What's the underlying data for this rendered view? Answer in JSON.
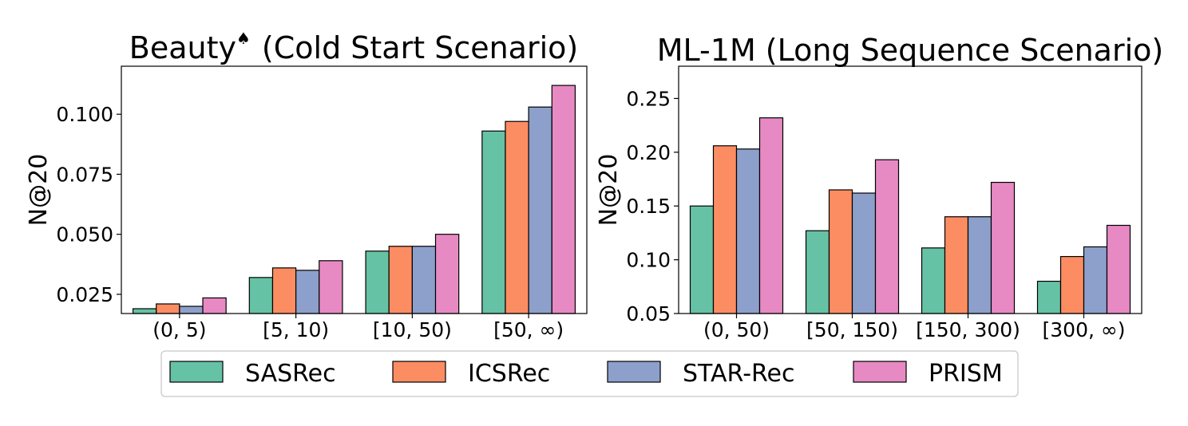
{
  "colors": {
    "SASRec": "#66c2a5",
    "ICSRec": "#fc8d62",
    "STAR-Rec": "#8da0cb",
    "PRISM": "#e78ac3"
  },
  "legend": {
    "placement": "bottom-center",
    "entries": [
      "SASRec",
      "ICSRec",
      "STAR-Rec",
      "PRISM"
    ]
  },
  "chart_data": [
    {
      "type": "bar",
      "title": "Beauty",
      "title_mark": "♠",
      "title_suffix": "(Cold Start Scenario)",
      "xlabel": "",
      "ylabel": "N@20",
      "ylim": [
        0.017,
        0.12
      ],
      "yticks": [
        "0.025",
        "0.050",
        "0.075",
        "0.100"
      ],
      "categories": [
        "(0, 5)",
        "[5, 10)",
        "[10, 50)",
        "[50, ∞)"
      ],
      "series": [
        {
          "name": "SASRec",
          "values": [
            0.019,
            0.032,
            0.043,
            0.093
          ]
        },
        {
          "name": "ICSRec",
          "values": [
            0.021,
            0.036,
            0.045,
            0.097
          ]
        },
        {
          "name": "STAR-Rec",
          "values": [
            0.02,
            0.035,
            0.045,
            0.103
          ]
        },
        {
          "name": "PRISM",
          "values": [
            0.0235,
            0.039,
            0.05,
            0.112
          ]
        }
      ],
      "grid": false
    },
    {
      "type": "bar",
      "title": "ML-1M (Long Sequence Scenario)",
      "title_mark": "",
      "title_suffix": "",
      "xlabel": "",
      "ylabel": "N@20",
      "ylim": [
        0.05,
        0.28
      ],
      "yticks": [
        "0.05",
        "0.10",
        "0.15",
        "0.20",
        "0.25"
      ],
      "categories": [
        "(0, 50)",
        "[50, 150)",
        "[150, 300)",
        "[300, ∞)"
      ],
      "series": [
        {
          "name": "SASRec",
          "values": [
            0.15,
            0.127,
            0.111,
            0.08
          ]
        },
        {
          "name": "ICSRec",
          "values": [
            0.206,
            0.165,
            0.14,
            0.103
          ]
        },
        {
          "name": "STAR-Rec",
          "values": [
            0.203,
            0.162,
            0.14,
            0.112
          ]
        },
        {
          "name": "PRISM",
          "values": [
            0.232,
            0.193,
            0.172,
            0.132
          ]
        }
      ],
      "grid": false
    }
  ]
}
